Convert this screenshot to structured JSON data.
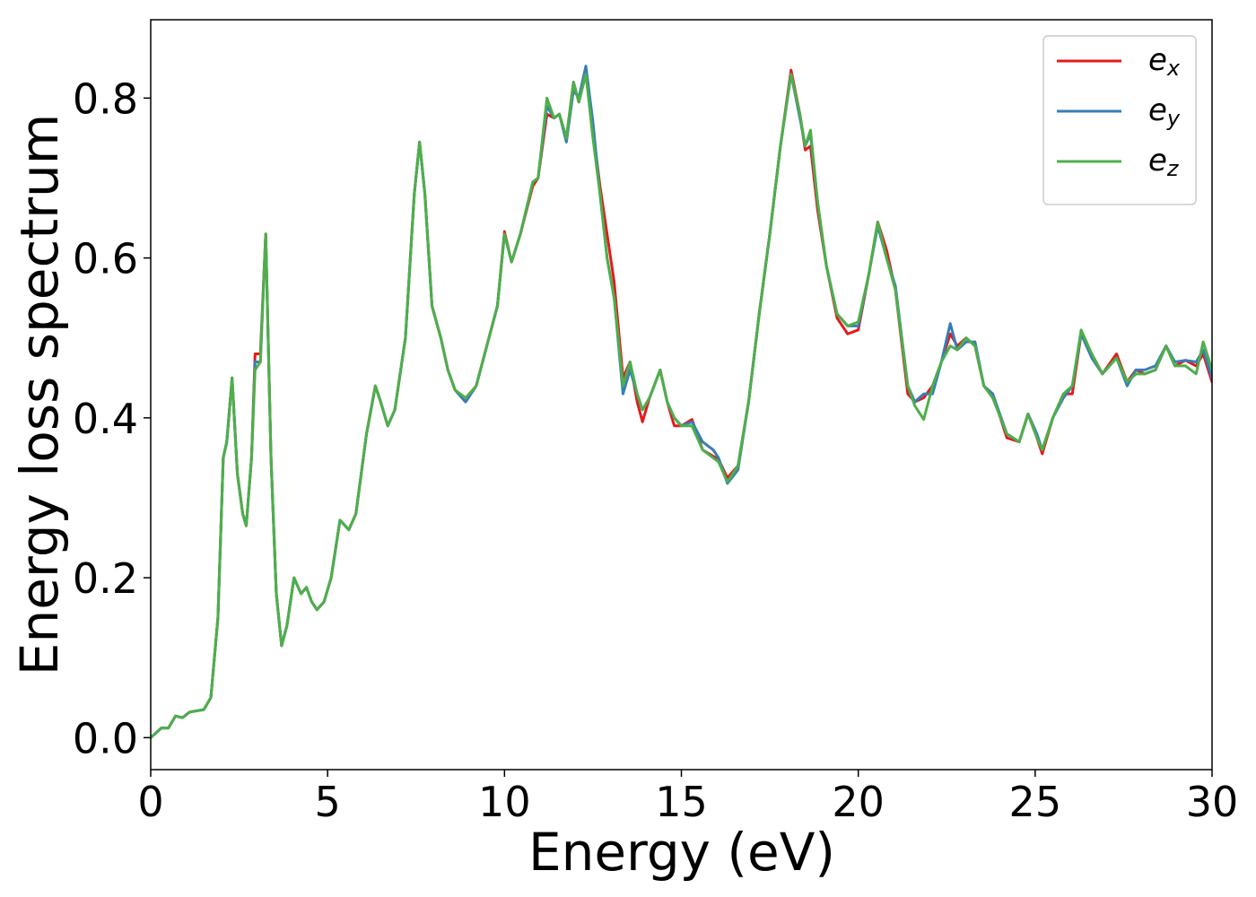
{
  "chart_data": {
    "type": "line",
    "xlabel": "Energy (eV)",
    "ylabel": "Energy loss spectrum",
    "x": [
      0,
      0.3,
      0.5,
      0.7,
      0.9,
      1.1,
      1.5,
      1.7,
      1.9,
      2.05,
      2.15,
      2.3,
      2.45,
      2.6,
      2.7,
      2.85,
      2.95,
      3.1,
      3.25,
      3.4,
      3.55,
      3.7,
      3.85,
      4.05,
      4.25,
      4.4,
      4.55,
      4.7,
      4.9,
      5.1,
      5.35,
      5.6,
      5.8,
      6.1,
      6.35,
      6.5,
      6.7,
      6.9,
      7.2,
      7.45,
      7.6,
      7.75,
      7.95,
      8.2,
      8.4,
      8.6,
      8.9,
      9.2,
      9.5,
      9.8,
      10,
      10.2,
      10.45,
      10.8,
      10.95,
      11.2,
      11.4,
      11.55,
      11.75,
      11.95,
      12.1,
      12.3,
      12.5,
      12.7,
      12.9,
      13.1,
      13.35,
      13.55,
      13.75,
      13.9,
      14.1,
      14.4,
      14.6,
      14.8,
      15,
      15.3,
      15.6,
      15.9,
      16.05,
      16.3,
      16.6,
      16.9,
      17.2,
      17.5,
      17.8,
      18.1,
      18.35,
      18.5,
      18.65,
      18.85,
      19.1,
      19.4,
      19.7,
      20,
      20.3,
      20.55,
      20.8,
      21.05,
      21.4,
      21.6,
      21.85,
      22.1,
      22.35,
      22.6,
      22.8,
      23.05,
      23.3,
      23.55,
      23.8,
      24.2,
      24.55,
      24.8,
      25.05,
      25.2,
      25.5,
      25.8,
      26.05,
      26.3,
      26.6,
      26.9,
      27.3,
      27.6,
      27.85,
      28.1,
      28.4,
      28.7,
      28.95,
      29.25,
      29.55,
      29.75,
      30
    ],
    "series": [
      {
        "name": "ex",
        "color": "#e41a1c",
        "values": [
          0,
          0.012,
          0.012,
          0.027,
          0.025,
          0.032,
          0.035,
          0.05,
          0.15,
          0.35,
          0.37,
          0.45,
          0.33,
          0.28,
          0.265,
          0.35,
          0.48,
          0.48,
          0.63,
          0.35,
          0.18,
          0.115,
          0.14,
          0.2,
          0.18,
          0.188,
          0.17,
          0.16,
          0.17,
          0.2,
          0.272,
          0.26,
          0.28,
          0.38,
          0.44,
          0.42,
          0.39,
          0.41,
          0.5,
          0.68,
          0.745,
          0.68,
          0.54,
          0.5,
          0.46,
          0.435,
          0.42,
          0.44,
          0.49,
          0.54,
          0.633,
          0.595,
          0.63,
          0.69,
          0.7,
          0.78,
          0.775,
          0.78,
          0.75,
          0.82,
          0.795,
          0.83,
          0.76,
          0.69,
          0.63,
          0.57,
          0.45,
          0.47,
          0.42,
          0.395,
          0.425,
          0.46,
          0.42,
          0.39,
          0.39,
          0.398,
          0.36,
          0.352,
          0.348,
          0.325,
          0.34,
          0.42,
          0.53,
          0.63,
          0.74,
          0.835,
          0.78,
          0.735,
          0.74,
          0.66,
          0.59,
          0.525,
          0.505,
          0.51,
          0.58,
          0.645,
          0.61,
          0.56,
          0.43,
          0.42,
          0.425,
          0.44,
          0.47,
          0.505,
          0.49,
          0.5,
          0.49,
          0.44,
          0.43,
          0.375,
          0.37,
          0.405,
          0.375,
          0.355,
          0.4,
          0.43,
          0.43,
          0.505,
          0.48,
          0.455,
          0.48,
          0.445,
          0.46,
          0.455,
          0.46,
          0.49,
          0.465,
          0.472,
          0.465,
          0.48,
          0.445
        ]
      },
      {
        "name": "ey",
        "color": "#377eb8",
        "values": [
          0,
          0.012,
          0.012,
          0.027,
          0.025,
          0.032,
          0.035,
          0.05,
          0.15,
          0.35,
          0.37,
          0.45,
          0.33,
          0.28,
          0.265,
          0.35,
          0.47,
          0.47,
          0.63,
          0.35,
          0.18,
          0.115,
          0.14,
          0.2,
          0.18,
          0.188,
          0.17,
          0.16,
          0.17,
          0.2,
          0.272,
          0.26,
          0.28,
          0.38,
          0.44,
          0.42,
          0.39,
          0.41,
          0.5,
          0.68,
          0.745,
          0.68,
          0.54,
          0.5,
          0.46,
          0.435,
          0.42,
          0.44,
          0.49,
          0.54,
          0.63,
          0.595,
          0.63,
          0.695,
          0.7,
          0.79,
          0.775,
          0.78,
          0.745,
          0.81,
          0.8,
          0.84,
          0.77,
          0.68,
          0.6,
          0.55,
          0.43,
          0.46,
          0.43,
          0.41,
          0.425,
          0.46,
          0.42,
          0.4,
          0.39,
          0.395,
          0.37,
          0.36,
          0.35,
          0.318,
          0.335,
          0.42,
          0.53,
          0.63,
          0.74,
          0.83,
          0.775,
          0.74,
          0.755,
          0.67,
          0.59,
          0.53,
          0.515,
          0.515,
          0.58,
          0.64,
          0.6,
          0.565,
          0.44,
          0.42,
          0.43,
          0.43,
          0.47,
          0.518,
          0.485,
          0.495,
          0.495,
          0.44,
          0.43,
          0.38,
          0.37,
          0.405,
          0.38,
          0.36,
          0.4,
          0.425,
          0.44,
          0.505,
          0.475,
          0.455,
          0.475,
          0.44,
          0.46,
          0.46,
          0.465,
          0.49,
          0.47,
          0.472,
          0.47,
          0.485,
          0.45
        ]
      },
      {
        "name": "ez",
        "color": "#4daf4a",
        "values": [
          0,
          0.012,
          0.012,
          0.027,
          0.025,
          0.032,
          0.035,
          0.05,
          0.15,
          0.35,
          0.37,
          0.45,
          0.33,
          0.28,
          0.265,
          0.35,
          0.46,
          0.47,
          0.63,
          0.35,
          0.18,
          0.115,
          0.14,
          0.2,
          0.18,
          0.188,
          0.17,
          0.16,
          0.17,
          0.2,
          0.272,
          0.26,
          0.28,
          0.38,
          0.44,
          0.42,
          0.39,
          0.41,
          0.5,
          0.68,
          0.745,
          0.68,
          0.54,
          0.5,
          0.46,
          0.435,
          0.425,
          0.44,
          0.49,
          0.54,
          0.63,
          0.595,
          0.63,
          0.695,
          0.7,
          0.8,
          0.775,
          0.78,
          0.75,
          0.82,
          0.795,
          0.83,
          0.75,
          0.68,
          0.6,
          0.55,
          0.44,
          0.47,
          0.43,
          0.41,
          0.425,
          0.46,
          0.42,
          0.4,
          0.39,
          0.39,
          0.36,
          0.35,
          0.345,
          0.32,
          0.34,
          0.42,
          0.53,
          0.63,
          0.74,
          0.83,
          0.78,
          0.74,
          0.76,
          0.67,
          0.59,
          0.53,
          0.515,
          0.52,
          0.58,
          0.645,
          0.6,
          0.56,
          0.44,
          0.415,
          0.398,
          0.44,
          0.47,
          0.49,
          0.485,
          0.5,
          0.49,
          0.44,
          0.425,
          0.38,
          0.37,
          0.405,
          0.375,
          0.36,
          0.4,
          0.43,
          0.44,
          0.51,
          0.48,
          0.455,
          0.475,
          0.445,
          0.455,
          0.455,
          0.46,
          0.49,
          0.465,
          0.465,
          0.455,
          0.495,
          0.46
        ]
      }
    ],
    "xlim": [
      0,
      30
    ],
    "xticks": [
      0,
      5,
      10,
      15,
      20,
      25,
      30
    ],
    "ylim": [
      -0.04,
      0.898
    ],
    "yticks": [
      {
        "value": 0,
        "label": "0.0"
      },
      0.2,
      0.4,
      0.6,
      0.8
    ],
    "grid": false,
    "legend": "upper right"
  }
}
